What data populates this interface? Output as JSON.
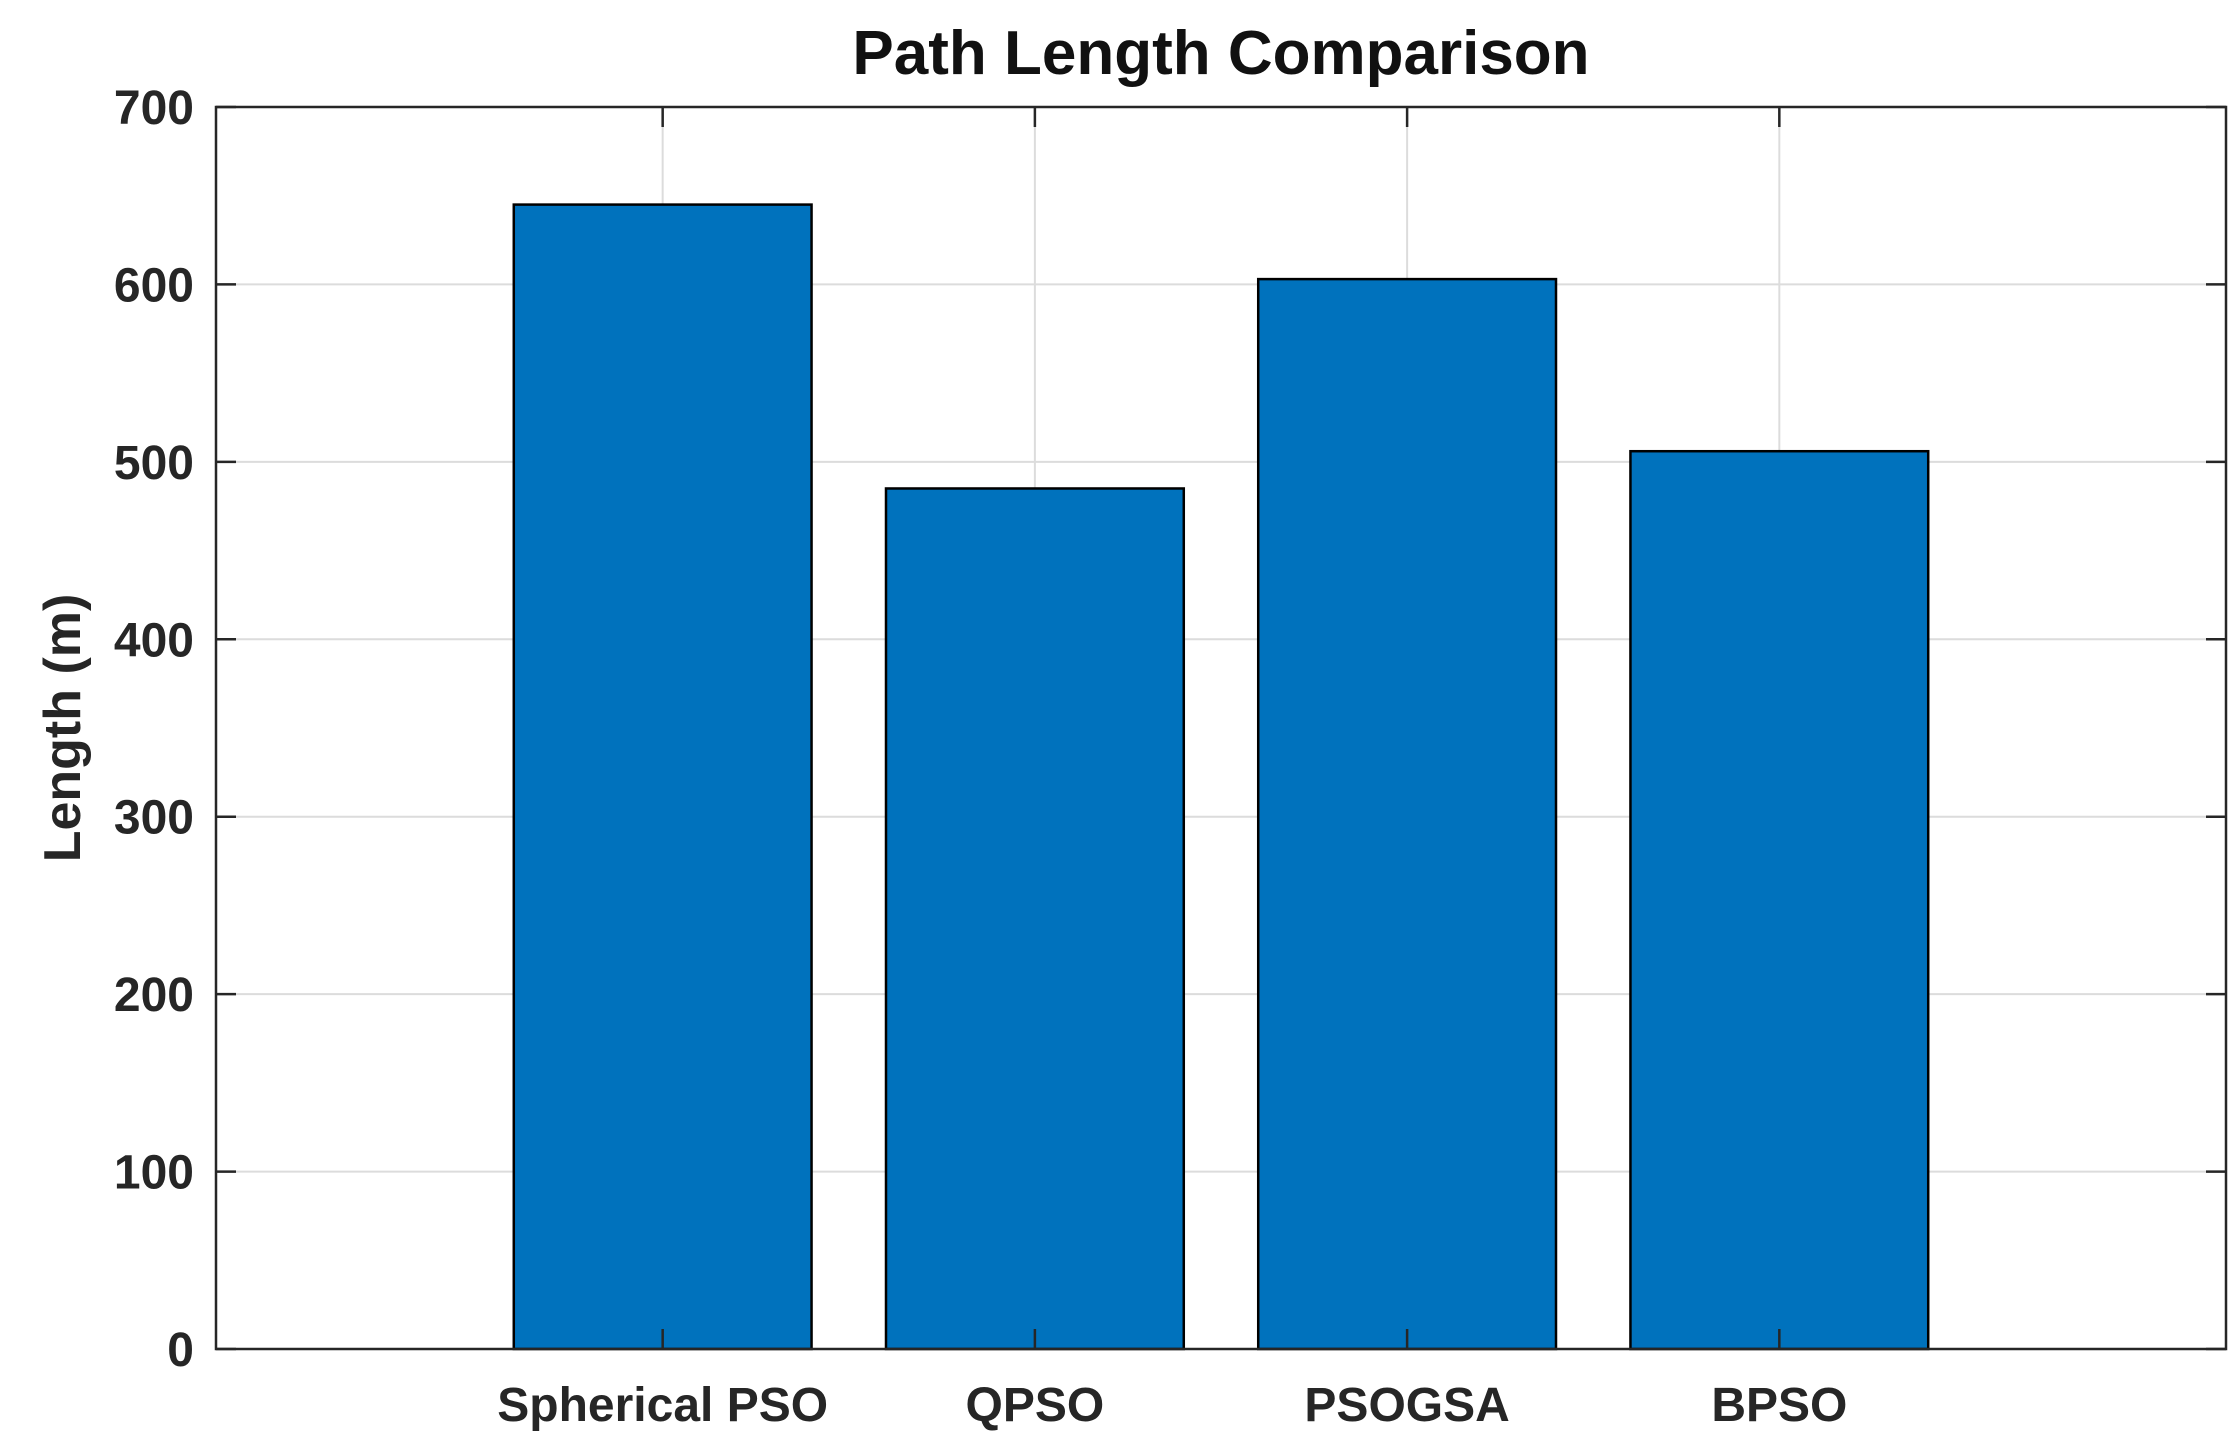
{
  "chart_data": {
    "type": "bar",
    "title": "Path Length Comparison",
    "xlabel": "",
    "ylabel": "Length (m)",
    "categories": [
      "Spherical PSO",
      "QPSO",
      "PSOGSA",
      "BPSO"
    ],
    "values": [
      645,
      485,
      603,
      506
    ],
    "x_positions": [
      1,
      2,
      3,
      4
    ],
    "xlim": [
      -0.2,
      5.2
    ],
    "ylim": [
      0,
      700
    ],
    "yticks": [
      0,
      100,
      200,
      300,
      400,
      500,
      600,
      700
    ],
    "grid": true,
    "bar_color": "#0072bd",
    "edge_color": "#000000"
  }
}
